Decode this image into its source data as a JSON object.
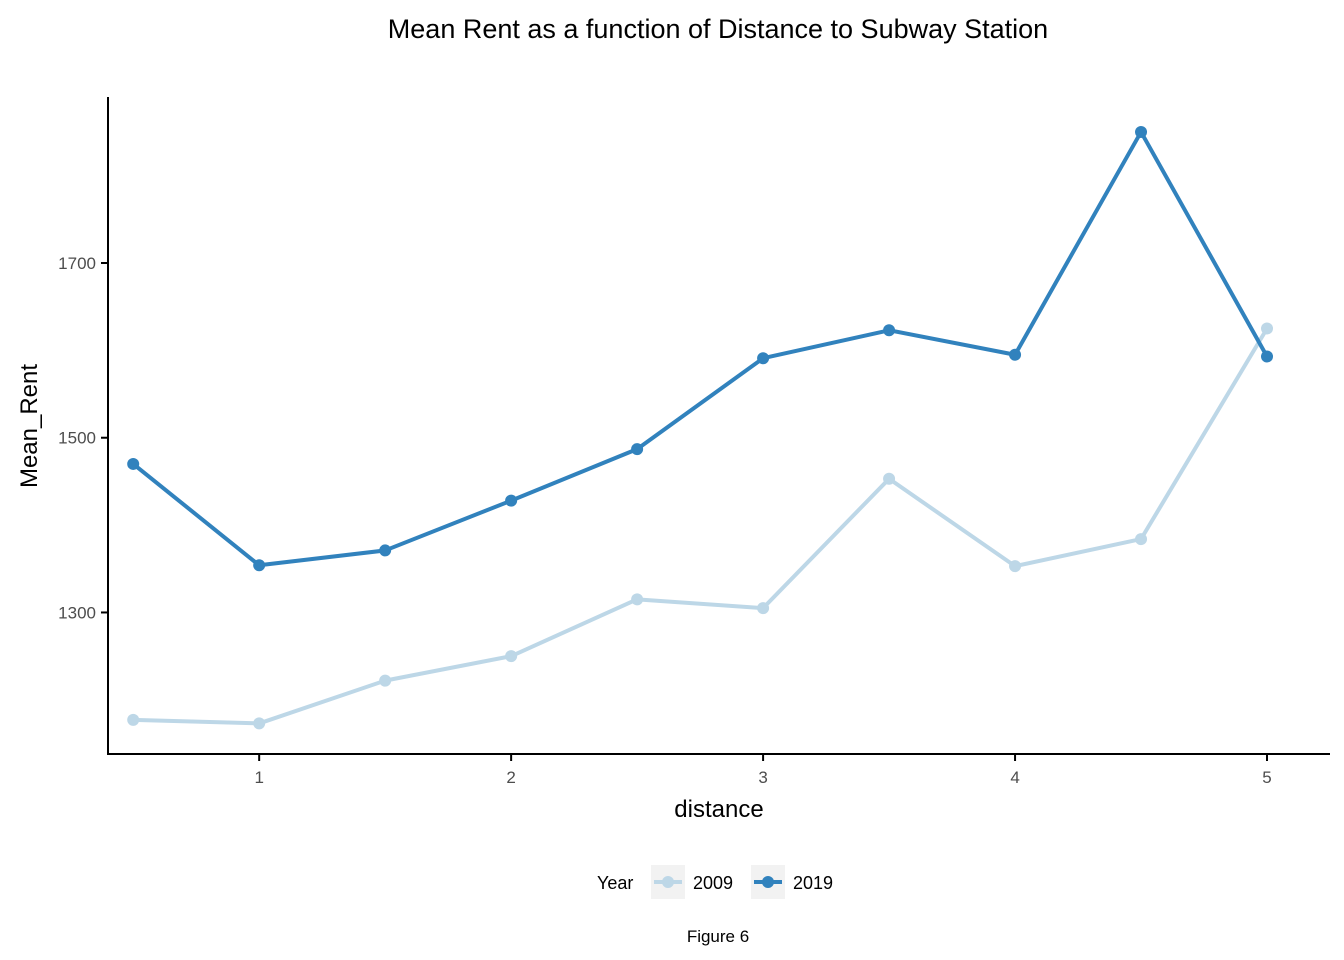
{
  "chart_data": {
    "type": "line",
    "title": "Mean Rent as a function of Distance to Subway Station",
    "xlabel": "distance",
    "ylabel": "Mean_Rent",
    "caption": "Figure 6",
    "x": [
      0.5,
      1,
      1.5,
      2,
      2.5,
      3,
      3.5,
      4,
      4.5,
      5
    ],
    "x_ticks": [
      1,
      2,
      3,
      4,
      5
    ],
    "x_tick_labels": [
      "1",
      "2",
      "3",
      "4",
      "5"
    ],
    "y_ticks": [
      1300,
      1500,
      1700
    ],
    "y_tick_labels": [
      "1300",
      "1500",
      "1700"
    ],
    "xlim": [
      0.4,
      5.25
    ],
    "ylim": [
      1138,
      1890
    ],
    "grid": false,
    "legend": {
      "title": "Year",
      "position": "bottom"
    },
    "series": [
      {
        "name": "2009",
        "color": "#bdd7e7",
        "values": [
          1177,
          1173,
          1222,
          1250,
          1315,
          1305,
          1453,
          1353,
          1384,
          1625
        ]
      },
      {
        "name": "2019",
        "color": "#3182bd",
        "values": [
          1470,
          1354,
          1371,
          1428,
          1487,
          1591,
          1623,
          1595,
          1850,
          1593
        ]
      }
    ]
  }
}
